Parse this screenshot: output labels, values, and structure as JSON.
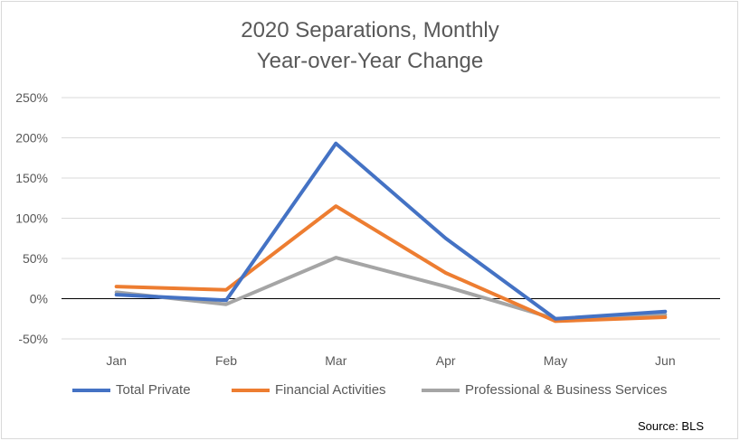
{
  "chart_data": {
    "type": "line",
    "title": "2020 Separations, Monthly",
    "subtitle": "Year-over-Year Change",
    "xlabel": "",
    "ylabel": "",
    "categories": [
      "Jan",
      "Feb",
      "Mar",
      "Apr",
      "May",
      "Jun"
    ],
    "yticks": [
      "250%",
      "200%",
      "150%",
      "100%",
      "50%",
      "0%",
      "-50%"
    ],
    "ylim": [
      -50,
      250
    ],
    "grid": true,
    "legend_position": "bottom",
    "series": [
      {
        "name": "Total Private",
        "color": "#4472c4",
        "values": [
          5,
          -2,
          193,
          75,
          -25,
          -16
        ]
      },
      {
        "name": "Financial Activities",
        "color": "#ed7d31",
        "values": [
          15,
          11,
          115,
          32,
          -28,
          -23
        ]
      },
      {
        "name": "Professional & Business Services",
        "color": "#a5a5a5",
        "values": [
          8,
          -7,
          51,
          15,
          -25,
          -20
        ]
      }
    ],
    "source_note": "Source: BLS"
  }
}
